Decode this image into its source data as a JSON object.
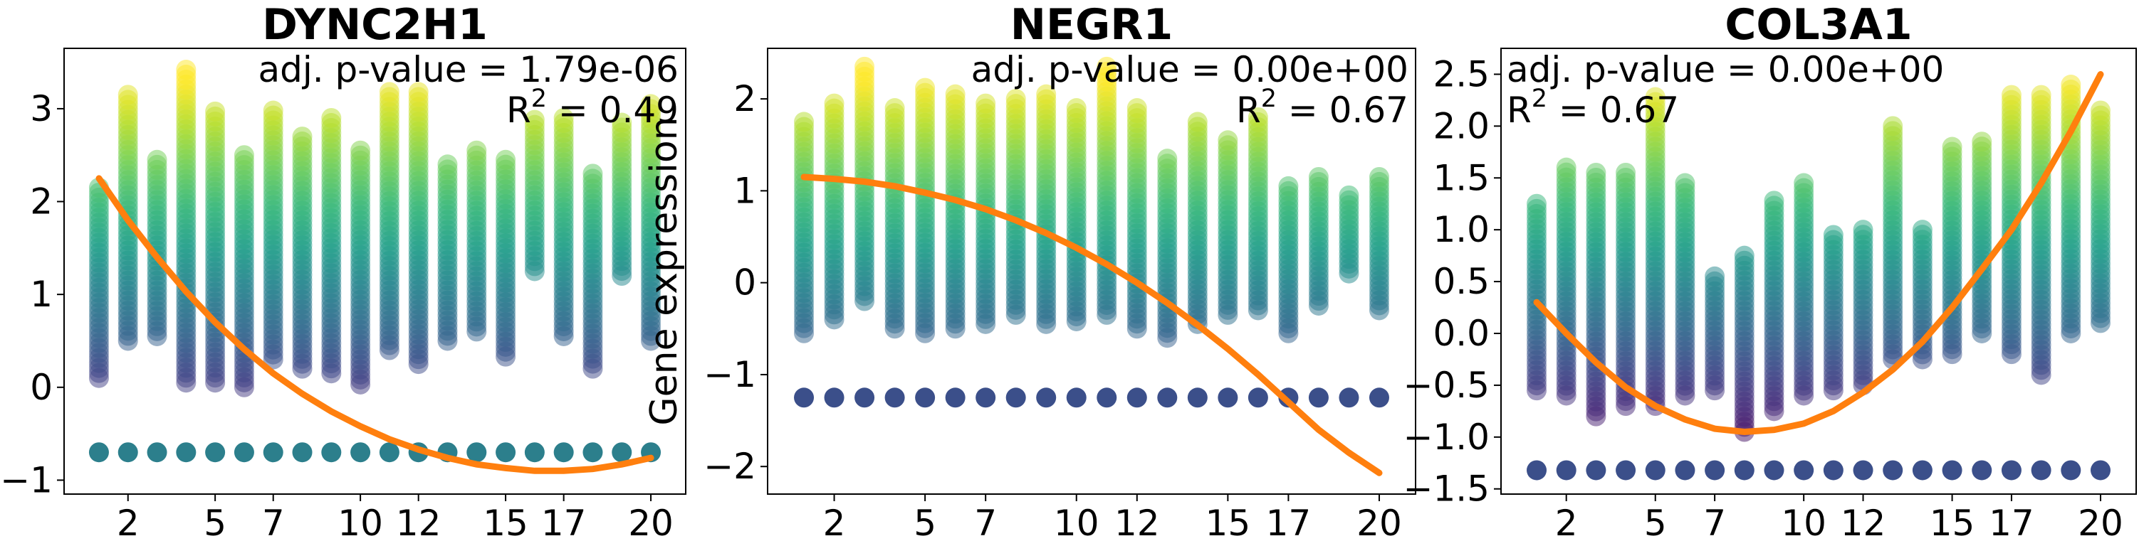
{
  "chart_data": [
    {
      "type": "scatter",
      "title": "DYNC2H1",
      "ylabel": "",
      "xticks": [
        "2",
        "5",
        "7",
        "10",
        "12",
        "15",
        "17",
        "20"
      ],
      "yticks": [
        "−1",
        "0",
        "1",
        "2",
        "3"
      ],
      "annotation_pvalue": "adj. p-value = 1.79e-06",
      "annotation_r2": "R",
      "annotation_r2_value": " = 0.49",
      "annotation_align": "right",
      "xlim": [
        -0.2,
        21.2
      ],
      "ylim": [
        -1.15,
        3.65
      ],
      "baseline_y": -0.7,
      "baseline_color": "#2c7f8c",
      "fit_color": "#ff7f0e",
      "columns": [
        {
          "x": 1,
          "min": 0.1,
          "max": 2.15
        },
        {
          "x": 2,
          "min": 0.5,
          "max": 3.15
        },
        {
          "x": 3,
          "min": 0.55,
          "max": 2.45
        },
        {
          "x": 4,
          "min": 0.05,
          "max": 3.42
        },
        {
          "x": 5,
          "min": 0.05,
          "max": 2.97
        },
        {
          "x": 6,
          "min": 0.0,
          "max": 2.5
        },
        {
          "x": 7,
          "min": 0.3,
          "max": 2.98
        },
        {
          "x": 8,
          "min": 0.2,
          "max": 2.7
        },
        {
          "x": 9,
          "min": 0.15,
          "max": 2.9
        },
        {
          "x": 10,
          "min": 0.03,
          "max": 2.55
        },
        {
          "x": 11,
          "min": 0.4,
          "max": 3.18
        },
        {
          "x": 12,
          "min": 0.25,
          "max": 3.18
        },
        {
          "x": 13,
          "min": 0.5,
          "max": 2.4
        },
        {
          "x": 14,
          "min": 0.6,
          "max": 2.55
        },
        {
          "x": 15,
          "min": 0.33,
          "max": 2.45
        },
        {
          "x": 16,
          "min": 1.25,
          "max": 2.88
        },
        {
          "x": 17,
          "min": 0.55,
          "max": 2.9
        },
        {
          "x": 18,
          "min": 0.2,
          "max": 2.3
        },
        {
          "x": 19,
          "min": 1.2,
          "max": 2.85
        },
        {
          "x": 20,
          "min": 0.5,
          "max": 3.05
        }
      ],
      "fit": [
        [
          1,
          2.25
        ],
        [
          2,
          1.8
        ],
        [
          3,
          1.4
        ],
        [
          4,
          1.03
        ],
        [
          5,
          0.7
        ],
        [
          6,
          0.41
        ],
        [
          7,
          0.15
        ],
        [
          8,
          -0.07
        ],
        [
          9,
          -0.26
        ],
        [
          10,
          -0.42
        ],
        [
          11,
          -0.56
        ],
        [
          12,
          -0.67
        ],
        [
          13,
          -0.76
        ],
        [
          14,
          -0.83
        ],
        [
          15,
          -0.87
        ],
        [
          16,
          -0.9
        ],
        [
          17,
          -0.9
        ],
        [
          18,
          -0.88
        ],
        [
          19,
          -0.83
        ],
        [
          20,
          -0.76
        ]
      ]
    },
    {
      "type": "scatter",
      "title": "NEGR1",
      "ylabel": "Gene expression",
      "xticks": [
        "2",
        "5",
        "7",
        "10",
        "12",
        "15",
        "17",
        "20"
      ],
      "yticks": [
        "−2",
        "−1",
        "0",
        "1",
        "2"
      ],
      "annotation_pvalue": "adj. p-value = 0.00e+00",
      "annotation_r2": "R",
      "annotation_r2_value": " = 0.67",
      "annotation_align": "right",
      "xlim": [
        -0.2,
        21.2
      ],
      "ylim": [
        -2.3,
        2.55
      ],
      "baseline_y": -1.25,
      "baseline_color": "#3b4f8a",
      "fit_color": "#ff7f0e",
      "columns": [
        {
          "x": 1,
          "min": -0.55,
          "max": 1.75
        },
        {
          "x": 2,
          "min": -0.4,
          "max": 1.95
        },
        {
          "x": 3,
          "min": -0.2,
          "max": 2.35
        },
        {
          "x": 4,
          "min": -0.5,
          "max": 1.9
        },
        {
          "x": 5,
          "min": -0.55,
          "max": 2.12
        },
        {
          "x": 6,
          "min": -0.5,
          "max": 2.05
        },
        {
          "x": 7,
          "min": -0.45,
          "max": 1.95
        },
        {
          "x": 8,
          "min": -0.35,
          "max": 2.0
        },
        {
          "x": 9,
          "min": -0.45,
          "max": 2.05
        },
        {
          "x": 10,
          "min": -0.42,
          "max": 1.9
        },
        {
          "x": 11,
          "min": -0.35,
          "max": 2.35
        },
        {
          "x": 12,
          "min": -0.5,
          "max": 1.9
        },
        {
          "x": 13,
          "min": -0.6,
          "max": 1.35
        },
        {
          "x": 14,
          "min": -0.45,
          "max": 1.75
        },
        {
          "x": 15,
          "min": -0.35,
          "max": 1.55
        },
        {
          "x": 16,
          "min": -0.3,
          "max": 1.8
        },
        {
          "x": 17,
          "min": -0.55,
          "max": 1.05
        },
        {
          "x": 18,
          "min": -0.25,
          "max": 1.15
        },
        {
          "x": 19,
          "min": 0.1,
          "max": 0.95
        },
        {
          "x": 20,
          "min": -0.3,
          "max": 1.15
        }
      ],
      "fit": [
        [
          1,
          1.15
        ],
        [
          2,
          1.13
        ],
        [
          3,
          1.1
        ],
        [
          4,
          1.05
        ],
        [
          5,
          0.98
        ],
        [
          6,
          0.9
        ],
        [
          7,
          0.8
        ],
        [
          8,
          0.68
        ],
        [
          9,
          0.54
        ],
        [
          10,
          0.38
        ],
        [
          11,
          0.2
        ],
        [
          12,
          0.0
        ],
        [
          13,
          -0.22
        ],
        [
          14,
          -0.46
        ],
        [
          15,
          -0.72
        ],
        [
          16,
          -1.0
        ],
        [
          17,
          -1.3
        ],
        [
          18,
          -1.6
        ],
        [
          19,
          -1.85
        ],
        [
          20,
          -2.07
        ]
      ]
    },
    {
      "type": "scatter",
      "title": "COL3A1",
      "ylabel": "",
      "xticks": [
        "2",
        "5",
        "7",
        "10",
        "12",
        "15",
        "17",
        "20"
      ],
      "yticks": [
        "−1.5",
        "−1.0",
        "−0.5",
        "0.0",
        "0.5",
        "1.0",
        "1.5",
        "2.0",
        "2.5"
      ],
      "annotation_pvalue": "adj. p-value = 0.00e+00",
      "annotation_r2": "R",
      "annotation_r2_value": " = 0.67",
      "annotation_align": "left",
      "xlim": [
        -0.2,
        21.2
      ],
      "ylim": [
        -1.55,
        2.75
      ],
      "baseline_y": -1.32,
      "baseline_color": "#3b4f8a",
      "fit_color": "#ff7f0e",
      "columns": [
        {
          "x": 1,
          "min": -0.55,
          "max": 1.25
        },
        {
          "x": 2,
          "min": -0.6,
          "max": 1.6
        },
        {
          "x": 3,
          "min": -0.8,
          "max": 1.55
        },
        {
          "x": 4,
          "min": -0.7,
          "max": 1.55
        },
        {
          "x": 5,
          "min": -0.7,
          "max": 2.28
        },
        {
          "x": 6,
          "min": -0.6,
          "max": 1.45
        },
        {
          "x": 7,
          "min": -0.55,
          "max": 0.55
        },
        {
          "x": 8,
          "min": -0.95,
          "max": 0.75
        },
        {
          "x": 9,
          "min": -0.75,
          "max": 1.28
        },
        {
          "x": 10,
          "min": -0.6,
          "max": 1.45
        },
        {
          "x": 11,
          "min": -0.55,
          "max": 0.95
        },
        {
          "x": 12,
          "min": -0.5,
          "max": 1.0
        },
        {
          "x": 13,
          "min": -0.25,
          "max": 2.0
        },
        {
          "x": 14,
          "min": -0.25,
          "max": 1.0
        },
        {
          "x": 15,
          "min": -0.2,
          "max": 1.8
        },
        {
          "x": 16,
          "min": 0.0,
          "max": 1.85
        },
        {
          "x": 17,
          "min": -0.2,
          "max": 2.3
        },
        {
          "x": 18,
          "min": -0.4,
          "max": 2.3
        },
        {
          "x": 19,
          "min": 0.0,
          "max": 2.4
        },
        {
          "x": 20,
          "min": 0.1,
          "max": 2.15
        }
      ],
      "fit": [
        [
          1,
          0.3
        ],
        [
          2,
          0.0
        ],
        [
          3,
          -0.28
        ],
        [
          4,
          -0.52
        ],
        [
          5,
          -0.7
        ],
        [
          6,
          -0.83
        ],
        [
          7,
          -0.92
        ],
        [
          8,
          -0.95
        ],
        [
          9,
          -0.93
        ],
        [
          10,
          -0.87
        ],
        [
          11,
          -0.75
        ],
        [
          12,
          -0.57
        ],
        [
          13,
          -0.35
        ],
        [
          14,
          -0.08
        ],
        [
          15,
          0.25
        ],
        [
          16,
          0.62
        ],
        [
          17,
          1.0
        ],
        [
          18,
          1.45
        ],
        [
          19,
          1.95
        ],
        [
          20,
          2.5
        ]
      ]
    }
  ]
}
